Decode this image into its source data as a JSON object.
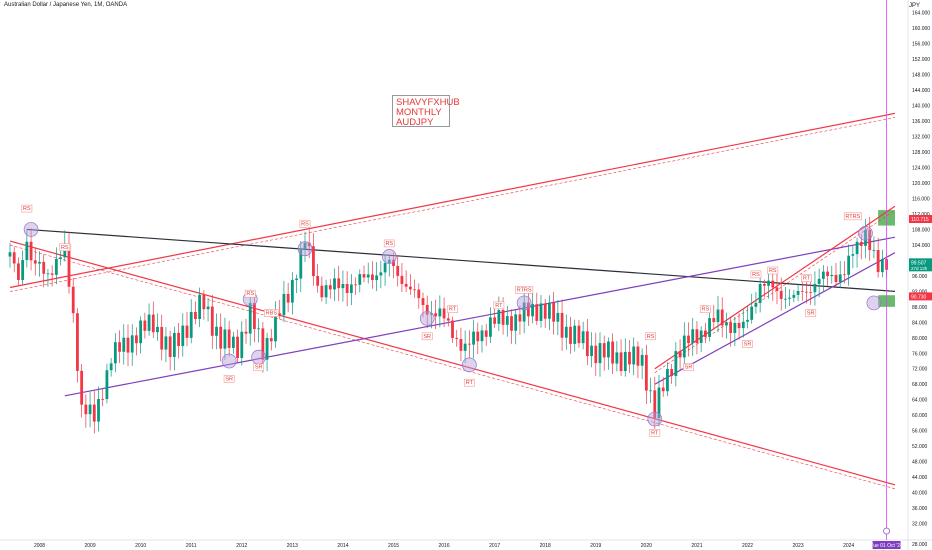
{
  "header": {
    "title": "Australian Dollar / Japanese Yen, 1M, OANDA",
    "currency": "JPY"
  },
  "note": {
    "lines": [
      "SHAVYFXHUB",
      "MONTHLY",
      "AUDJPY"
    ]
  },
  "colors": {
    "up": "#26a69a",
    "down": "#ef5350",
    "up_candle": "#089981",
    "down_candle": "#f23645",
    "trend_red": "#f23645",
    "trend_purple": "#7e3fbf",
    "trend_black": "#2a2e39",
    "zone_green": "#4caf50",
    "cursor": "#e040fb",
    "circle_fill": "#b39ddb"
  },
  "price_tags": {
    "upper": "110.715",
    "current": "99.507",
    "countdown": "27d 13h",
    "lower": "90.730"
  },
  "cursor_label": "Tue 01 Oct '24",
  "chart_data": {
    "type": "candlestick",
    "title": "Australian Dollar / Japanese Yen, 1M, OANDA",
    "timeframe": "1M",
    "x_range": [
      "2007-06",
      "2024-12"
    ],
    "ylim": [
      28,
      166
    ],
    "y_ticks": [
      164,
      160,
      156,
      152,
      148,
      144,
      140,
      136,
      132,
      128,
      124,
      120,
      116,
      112,
      108,
      104,
      100,
      96,
      92,
      88,
      84,
      80,
      76,
      72,
      68,
      64,
      60,
      56,
      52,
      48,
      44,
      40,
      36,
      32
    ],
    "y_tick_labels": [
      "164.000",
      "160.000",
      "156.000",
      "152.000",
      "148.000",
      "144.000",
      "140.000",
      "136.000",
      "132.000",
      "128.000",
      "124.000",
      "120.000",
      "116.000",
      "112.000",
      "108.000",
      "104.000",
      "100.000",
      "96.000",
      "92.000",
      "88.000",
      "84.000",
      "80.000",
      "76.000",
      "72.000",
      "68.000",
      "64.000",
      "60.000",
      "56.000",
      "52.000",
      "48.000",
      "44.000",
      "40.000",
      "36.000",
      "32.000"
    ],
    "x_ticks": [
      "2008",
      "2009",
      "2010",
      "2011",
      "2012",
      "2013",
      "2014",
      "2015",
      "2016",
      "2017",
      "2018",
      "2019",
      "2020",
      "2021",
      "2022",
      "2023",
      "2024"
    ],
    "y_axis_bottom_label": "28.000",
    "close_path": [
      [
        "2007-06",
        101
      ],
      [
        "2007-08",
        96
      ],
      [
        "2007-10",
        106
      ],
      [
        "2007-11",
        99
      ],
      [
        "2008-03",
        97
      ],
      [
        "2008-07",
        102
      ],
      [
        "2008-09",
        86
      ],
      [
        "2008-11",
        62
      ],
      [
        "2009-02",
        59
      ],
      [
        "2009-06",
        75
      ],
      [
        "2009-12",
        81
      ],
      [
        "2010-04",
        84
      ],
      [
        "2010-08",
        76
      ],
      [
        "2010-11",
        82
      ],
      [
        "2011-04",
        89
      ],
      [
        "2011-08",
        79
      ],
      [
        "2011-12",
        78
      ],
      [
        "2012-03",
        86
      ],
      [
        "2012-06",
        77
      ],
      [
        "2012-12",
        91
      ],
      [
        "2013-04",
        105
      ],
      [
        "2013-07",
        93
      ],
      [
        "2013-12",
        93
      ],
      [
        "2014-06",
        95
      ],
      [
        "2014-12",
        99
      ],
      [
        "2015-04",
        94
      ],
      [
        "2015-08",
        88
      ],
      [
        "2015-12",
        86
      ],
      [
        "2016-06",
        77
      ],
      [
        "2016-12",
        84
      ],
      [
        "2017-06",
        85
      ],
      [
        "2017-12",
        88
      ],
      [
        "2018-06",
        82
      ],
      [
        "2018-12",
        77
      ],
      [
        "2019-06",
        75
      ],
      [
        "2019-12",
        74
      ],
      [
        "2020-03",
        61
      ],
      [
        "2020-08",
        76
      ],
      [
        "2020-12",
        80
      ],
      [
        "2021-06",
        85
      ],
      [
        "2021-12",
        82
      ],
      [
        "2022-04",
        94
      ],
      [
        "2022-12",
        90
      ],
      [
        "2023-06",
        95
      ],
      [
        "2023-12",
        97
      ],
      [
        "2024-05",
        108
      ],
      [
        "2024-08",
        97
      ],
      [
        "2024-10",
        99.5
      ]
    ],
    "trendlines": [
      {
        "color": "trend_red",
        "from": [
          "2007-06",
          93
        ],
        "to": [
          "2024-12",
          138
        ]
      },
      {
        "color": "trend_black",
        "from": [
          "2007-10",
          108
        ],
        "to": [
          "2024-12",
          92
        ]
      },
      {
        "color": "trend_red",
        "from": [
          "2007-06",
          105
        ],
        "to": [
          "2024-12",
          42
        ]
      },
      {
        "color": "trend_purple",
        "from": [
          "2008-07",
          65
        ],
        "to": [
          "2024-12",
          106
        ]
      },
      {
        "color": "trend_red",
        "from": [
          "2020-03",
          72
        ],
        "to": [
          "2024-12",
          114
        ]
      },
      {
        "color": "trend_purple",
        "from": [
          "2020-03",
          68
        ],
        "to": [
          "2024-12",
          102
        ]
      }
    ],
    "annotations": [
      {
        "label": "RS",
        "date": "2007-10",
        "price": 113
      },
      {
        "label": "RS",
        "date": "2008-07",
        "price": 103
      },
      {
        "label": "RS",
        "date": "2012-03",
        "price": 91
      },
      {
        "label": "RBS",
        "date": "2012-08",
        "price": 86
      },
      {
        "label": "SR",
        "date": "2011-10",
        "price": 69
      },
      {
        "label": "SR",
        "date": "2012-05",
        "price": 72
      },
      {
        "label": "RS",
        "date": "2013-04",
        "price": 109
      },
      {
        "label": "RS",
        "date": "2014-12",
        "price": 104
      },
      {
        "label": "RT",
        "date": "2016-03",
        "price": 87
      },
      {
        "label": "SR",
        "date": "2015-09",
        "price": 80
      },
      {
        "label": "RT",
        "date": "2016-07",
        "price": 68
      },
      {
        "label": "RT",
        "date": "2017-02",
        "price": 88
      },
      {
        "label": "RTRS",
        "date": "2017-08",
        "price": 92
      },
      {
        "label": "RS",
        "date": "2020-02",
        "price": 80
      },
      {
        "label": "RT",
        "date": "2020-03",
        "price": 55
      },
      {
        "label": "RS",
        "date": "2021-03",
        "price": 87
      },
      {
        "label": "SR",
        "date": "2020-11",
        "price": 72
      },
      {
        "label": "RS",
        "date": "2022-03",
        "price": 96
      },
      {
        "label": "SR",
        "date": "2022-01",
        "price": 78
      },
      {
        "label": "RT",
        "date": "2023-03",
        "price": 95
      },
      {
        "label": "SR",
        "date": "2023-04",
        "price": 86
      },
      {
        "label": "RTRS",
        "date": "2024-02",
        "price": 111
      },
      {
        "label": "RS",
        "date": "2022-07",
        "price": 97
      }
    ],
    "circled_points": [
      [
        "2007-11",
        108
      ],
      [
        "2012-03",
        90
      ],
      [
        "2011-10",
        74
      ],
      [
        "2012-05",
        75
      ],
      [
        "2013-04",
        103
      ],
      [
        "2014-12",
        101
      ],
      [
        "2015-09",
        85
      ],
      [
        "2016-07",
        73
      ],
      [
        "2017-08",
        89
      ],
      [
        "2020-03",
        59
      ],
      [
        "2024-05",
        107
      ],
      [
        "2024-07",
        89
      ]
    ],
    "zones": [
      {
        "from": "2024-08",
        "to": "2024-12",
        "price": [
          109,
          113
        ],
        "color": "zone_green"
      },
      {
        "from": "2024-08",
        "to": "2024-12",
        "price": [
          88,
          91
        ],
        "color": "zone_green"
      }
    ]
  }
}
